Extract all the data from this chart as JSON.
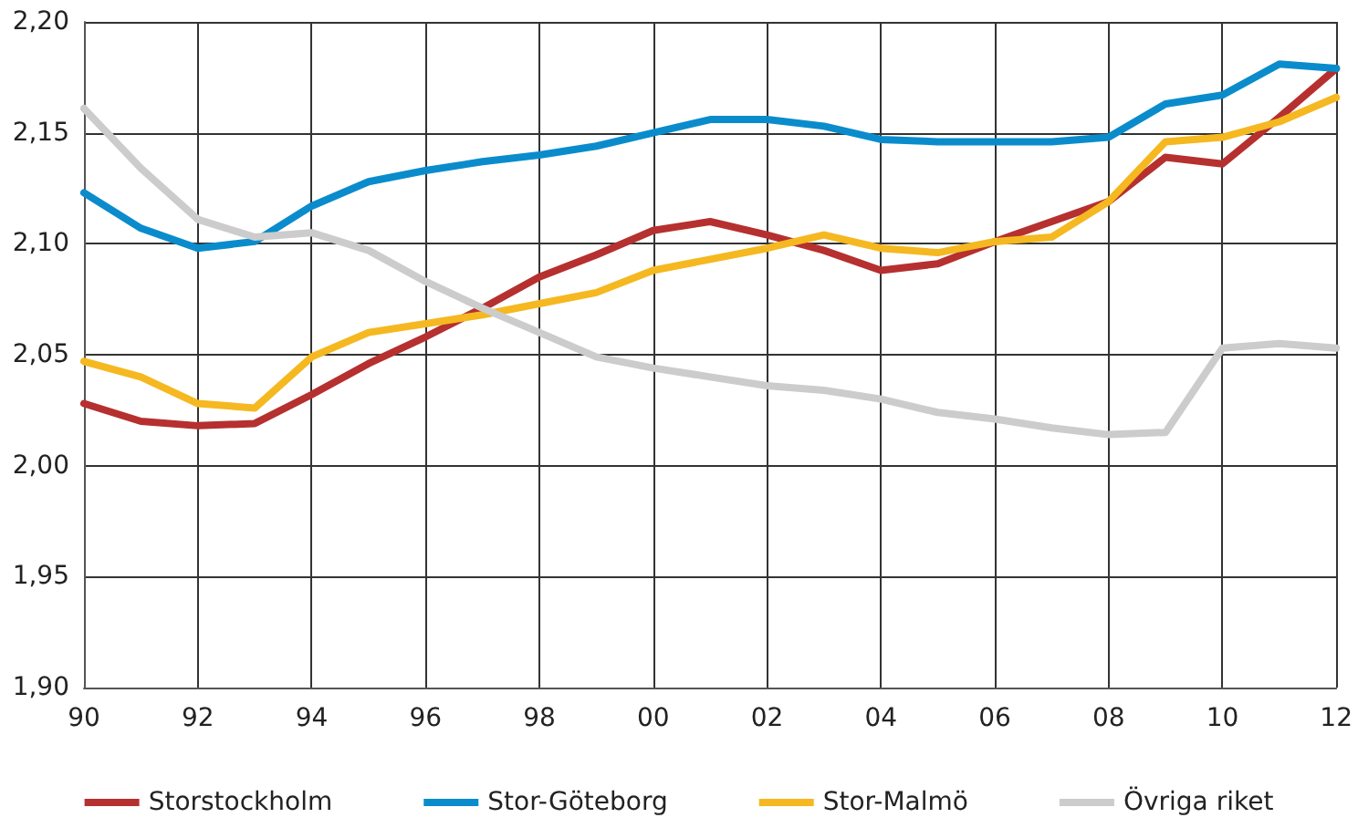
{
  "chart_data": {
    "type": "line",
    "x": [
      1990,
      1991,
      1992,
      1993,
      1994,
      1995,
      1996,
      1997,
      1998,
      1999,
      2000,
      2001,
      2002,
      2003,
      2004,
      2005,
      2006,
      2007,
      2008,
      2009,
      2010,
      2011,
      2012
    ],
    "series": [
      {
        "name": "Storstockholm",
        "color": "#b5302f",
        "values": [
          2.028,
          2.02,
          2.018,
          2.019,
          2.032,
          2.046,
          2.058,
          2.071,
          2.085,
          2.095,
          2.106,
          2.11,
          2.104,
          2.097,
          2.088,
          2.091,
          2.101,
          2.11,
          2.119,
          2.139,
          2.136,
          2.157,
          2.179
        ]
      },
      {
        "name": "Stor-Göteborg",
        "color": "#0a8ccc",
        "values": [
          2.123,
          2.107,
          2.098,
          2.101,
          2.117,
          2.128,
          2.133,
          2.137,
          2.14,
          2.144,
          2.15,
          2.156,
          2.156,
          2.153,
          2.147,
          2.146,
          2.146,
          2.146,
          2.148,
          2.163,
          2.167,
          2.181,
          2.179
        ]
      },
      {
        "name": "Stor-Malmö",
        "color": "#f5b820",
        "values": [
          2.047,
          2.04,
          2.028,
          2.026,
          2.049,
          2.06,
          2.064,
          2.068,
          2.073,
          2.078,
          2.088,
          2.093,
          2.098,
          2.104,
          2.098,
          2.096,
          2.101,
          2.103,
          2.119,
          2.146,
          2.148,
          2.155,
          2.166
        ]
      },
      {
        "name": "Övriga riket",
        "color": "#cccccc",
        "values": [
          2.161,
          2.134,
          2.111,
          2.103,
          2.105,
          2.097,
          2.083,
          2.071,
          2.06,
          2.049,
          2.044,
          2.04,
          2.036,
          2.034,
          2.03,
          2.024,
          2.021,
          2.017,
          2.014,
          2.015,
          2.053,
          2.055,
          2.053
        ]
      }
    ],
    "xlim": [
      1990,
      2012
    ],
    "xticks": [
      {
        "value": 1990,
        "label": "90"
      },
      {
        "value": 1992,
        "label": "92"
      },
      {
        "value": 1994,
        "label": "94"
      },
      {
        "value": 1996,
        "label": "96"
      },
      {
        "value": 1998,
        "label": "98"
      },
      {
        "value": 2000,
        "label": "00"
      },
      {
        "value": 2002,
        "label": "02"
      },
      {
        "value": 2004,
        "label": "04"
      },
      {
        "value": 2006,
        "label": "06"
      },
      {
        "value": 2008,
        "label": "08"
      },
      {
        "value": 2010,
        "label": "10"
      },
      {
        "value": 2012,
        "label": "12"
      }
    ],
    "ylim": [
      1.9,
      2.2
    ],
    "yticks": [
      {
        "value": 1.9,
        "label": "1,90"
      },
      {
        "value": 1.95,
        "label": "1,95"
      },
      {
        "value": 2.0,
        "label": "2,00"
      },
      {
        "value": 2.05,
        "label": "2,05"
      },
      {
        "value": 2.1,
        "label": "2,10"
      },
      {
        "value": 2.15,
        "label": "2,15"
      },
      {
        "value": 2.2,
        "label": "2,20"
      }
    ],
    "grid": true,
    "legend": "bottom",
    "marker": "none",
    "line_style": "solid"
  }
}
